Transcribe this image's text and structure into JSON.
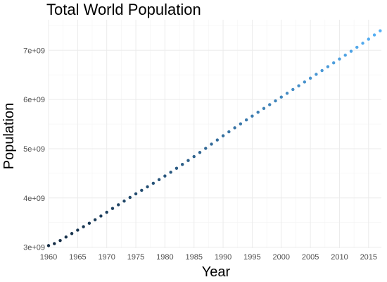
{
  "chart_data": {
    "type": "scatter",
    "title": "Total World Population",
    "xlabel": "Year",
    "ylabel": "Population",
    "xlim": [
      1960,
      2017
    ],
    "ylim": [
      3000000000,
      7600000000
    ],
    "x_ticks": [
      1960,
      1965,
      1970,
      1975,
      1980,
      1985,
      1990,
      1995,
      2000,
      2005,
      2010,
      2015
    ],
    "y_ticks": [
      3000000000,
      4000000000,
      5000000000,
      6000000000,
      7000000000
    ],
    "y_tick_labels": [
      "3e+09",
      "4e+09",
      "5e+09",
      "6e+09",
      "7e+09"
    ],
    "grid": true,
    "legend": "none",
    "color_low": "#132b43",
    "color_high": "#56b1f7",
    "x": [
      1960,
      1961,
      1962,
      1963,
      1964,
      1965,
      1966,
      1967,
      1968,
      1969,
      1970,
      1971,
      1972,
      1973,
      1974,
      1975,
      1976,
      1977,
      1978,
      1979,
      1980,
      1981,
      1982,
      1983,
      1984,
      1985,
      1986,
      1987,
      1988,
      1989,
      1990,
      1991,
      1992,
      1993,
      1994,
      1995,
      1996,
      1997,
      1998,
      1999,
      2000,
      2001,
      2002,
      2003,
      2004,
      2005,
      2006,
      2007,
      2008,
      2009,
      2010,
      2011,
      2012,
      2013,
      2014,
      2015,
      2016,
      2017
    ],
    "y": [
      3032000000,
      3072000000,
      3135000000,
      3206000000,
      3277000000,
      3346000000,
      3416000000,
      3485000000,
      3557000000,
      3633000000,
      3710000000,
      3786000000,
      3862000000,
      3936000000,
      4011000000,
      4084000000,
      4155000000,
      4226000000,
      4298000000,
      4372000000,
      4446000000,
      4522000000,
      4602000000,
      4681000000,
      4760000000,
      4841000000,
      4924000000,
      5008000000,
      5093000000,
      5178000000,
      5263000000,
      5344000000,
      5425000000,
      5505000000,
      5585000000,
      5663000000,
      5741000000,
      5818000000,
      5895000000,
      5972000000,
      6049000000,
      6126000000,
      6203000000,
      6279000000,
      6355000000,
      6433000000,
      6511000000,
      6588000000,
      6666000000,
      6744000000,
      6822000000,
      6900000000,
      6980000000,
      7060000000,
      7142000000,
      7226000000,
      7311000000,
      7396000000
    ]
  }
}
